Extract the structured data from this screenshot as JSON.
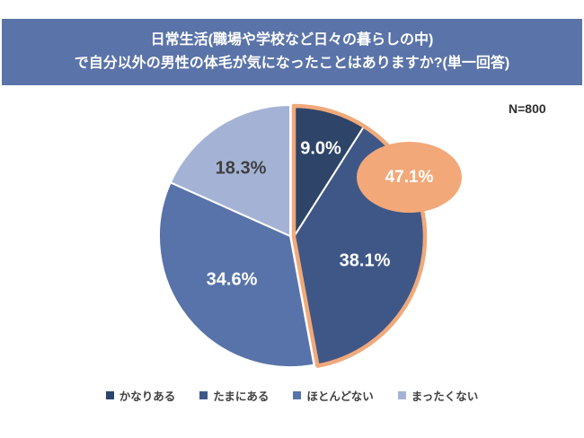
{
  "header": {
    "title_line1": "日常生活(職場や学校など日々の暮らしの中)",
    "title_line2": "で自分以外の男性の体毛が気になったことはありますか?(単一回答)",
    "bg_color": "#5a73a8",
    "text_color": "#ffffff"
  },
  "sample_size": "N=800",
  "chart_data": {
    "type": "pie",
    "title": "日常生活(職場や学校など日々の暮らしの中)で自分以外の男性の体毛が気になったことはありますか?(単一回答)",
    "sample_size": "N=800",
    "categories": [
      "かなりある",
      "たまにある",
      "ほとんどない",
      "まったくない"
    ],
    "values": [
      9.0,
      38.1,
      34.6,
      18.3
    ],
    "labels": [
      "9.0%",
      "38.1%",
      "34.6%",
      "18.3%"
    ],
    "colors": [
      "#2e4468",
      "#3f5787",
      "#5873a9",
      "#a4b3d5"
    ],
    "start_angle_deg": 0,
    "direction": "clockwise",
    "legend_position": "bottom",
    "highlight": {
      "indices": [
        0,
        1
      ],
      "combined_label": "47.1%",
      "color": "#f2a878",
      "outline_color": "#f0a97a"
    }
  },
  "legend": {
    "items": [
      {
        "label": "かなりある",
        "color": "#2e4468"
      },
      {
        "label": "たまにある",
        "color": "#3f5787"
      },
      {
        "label": "ほとんどない",
        "color": "#5873a9"
      },
      {
        "label": "まったくない",
        "color": "#a4b3d5"
      }
    ]
  }
}
